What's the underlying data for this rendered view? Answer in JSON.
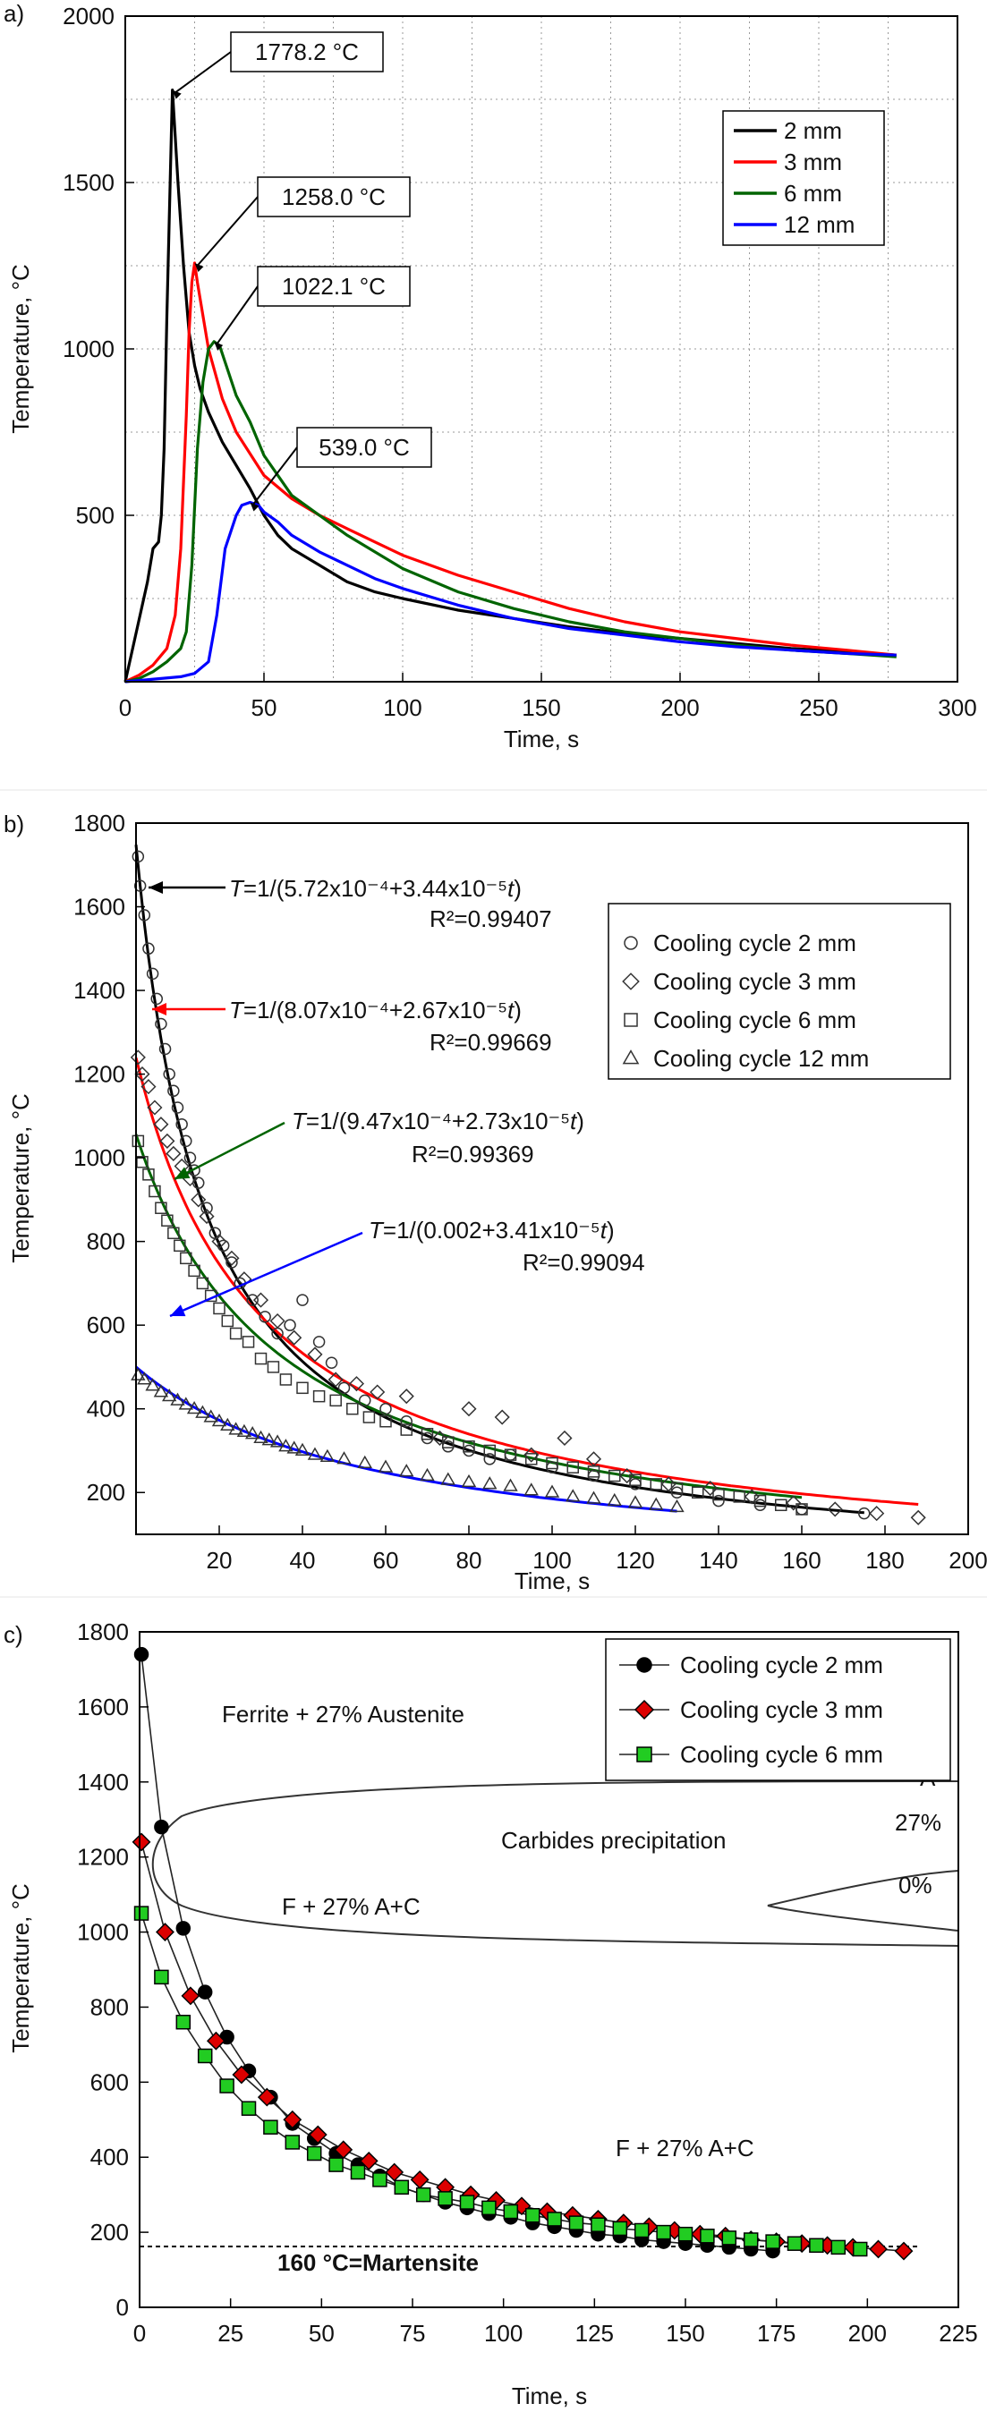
{
  "chart_data": [
    {
      "panel_label": "a)",
      "type": "line",
      "xlabel": "Time, s",
      "ylabel": "Temperature, °C",
      "xlim": [
        0,
        300
      ],
      "ylim": [
        0,
        2000
      ],
      "xticks": [
        0,
        50,
        100,
        150,
        200,
        250,
        300
      ],
      "yticks": [
        500,
        1000,
        1500,
        2000
      ],
      "legend_position": "top-right",
      "series": [
        {
          "name": "2 mm",
          "color": "#000000",
          "x": [
            0,
            4,
            8,
            10,
            12,
            13,
            14,
            15,
            17,
            19,
            21,
            23,
            25,
            27,
            30,
            35,
            40,
            45,
            50,
            55,
            60,
            70,
            80,
            90,
            100,
            120,
            140,
            160,
            180,
            200,
            220,
            240,
            260,
            278
          ],
          "y": [
            0,
            150,
            300,
            400,
            420,
            500,
            700,
            1100,
            1778,
            1500,
            1250,
            1050,
            950,
            880,
            810,
            720,
            650,
            580,
            500,
            440,
            400,
            350,
            300,
            270,
            250,
            215,
            190,
            165,
            145,
            130,
            115,
            100,
            90,
            80
          ]
        },
        {
          "name": "3 mm",
          "color": "#ff0000",
          "x": [
            0,
            5,
            10,
            15,
            18,
            20,
            22,
            23,
            24,
            25,
            26,
            30,
            35,
            40,
            50,
            60,
            70,
            80,
            90,
            100,
            120,
            140,
            160,
            180,
            200,
            220,
            240,
            260,
            278
          ],
          "y": [
            0,
            20,
            50,
            100,
            200,
            400,
            800,
            1050,
            1200,
            1258,
            1200,
            1000,
            850,
            750,
            620,
            550,
            500,
            460,
            420,
            380,
            320,
            270,
            220,
            180,
            150,
            130,
            110,
            95,
            80
          ]
        },
        {
          "name": "6 mm",
          "color": "#006400",
          "x": [
            0,
            5,
            10,
            15,
            20,
            22,
            24,
            26,
            28,
            30,
            32,
            34,
            36,
            40,
            45,
            50,
            60,
            70,
            80,
            90,
            100,
            120,
            140,
            160,
            180,
            200,
            220,
            240,
            260,
            278
          ],
          "y": [
            0,
            10,
            30,
            60,
            100,
            150,
            350,
            700,
            900,
            1000,
            1022,
            1010,
            960,
            860,
            780,
            680,
            560,
            500,
            440,
            390,
            340,
            270,
            220,
            180,
            150,
            130,
            110,
            95,
            85,
            75
          ]
        },
        {
          "name": "12 mm",
          "color": "#0000ff",
          "x": [
            0,
            20,
            25,
            30,
            33,
            36,
            40,
            42,
            45,
            48,
            50,
            55,
            60,
            70,
            80,
            90,
            100,
            120,
            140,
            160,
            180,
            200,
            220,
            240,
            260,
            278
          ],
          "y": [
            0,
            15,
            25,
            60,
            200,
            400,
            500,
            530,
            539,
            530,
            510,
            480,
            440,
            390,
            350,
            310,
            280,
            230,
            190,
            160,
            140,
            120,
            105,
            95,
            85,
            80
          ]
        }
      ],
      "annotations": [
        {
          "text": "1778.2 °C",
          "x": 17,
          "y": 1778
        },
        {
          "text": "1258.0 °C",
          "x": 25,
          "y": 1258
        },
        {
          "text": "1022.1 °C",
          "x": 32,
          "y": 1022
        },
        {
          "text": "539.0 °C",
          "x": 45,
          "y": 539
        }
      ]
    },
    {
      "panel_label": "b)",
      "type": "scatter",
      "xlabel": "Time, s",
      "ylabel": "Temperature, °C",
      "xlim": [
        0,
        200
      ],
      "ylim": [
        100,
        1800
      ],
      "xticks": [
        20,
        40,
        60,
        80,
        100,
        120,
        140,
        160,
        180,
        200
      ],
      "yticks": [
        200,
        400,
        600,
        800,
        1000,
        1200,
        1400,
        1600,
        1800
      ],
      "legend_position": "top-right",
      "series": [
        {
          "name": "Cooling cycle 2 mm",
          "marker": "circle",
          "x": [
            0.5,
            1,
            2,
            3,
            4,
            5,
            6,
            7,
            8,
            9,
            10,
            11,
            12,
            13,
            14,
            15,
            17,
            19,
            21,
            23,
            25,
            28,
            31,
            34,
            37,
            40,
            44,
            47,
            50,
            55,
            60,
            65,
            70,
            75,
            80,
            85,
            90,
            100,
            110,
            120,
            130,
            140,
            150,
            160,
            175
          ],
          "y": [
            1720,
            1650,
            1580,
            1500,
            1440,
            1380,
            1320,
            1260,
            1200,
            1160,
            1120,
            1080,
            1040,
            1000,
            970,
            940,
            880,
            820,
            790,
            750,
            700,
            660,
            620,
            580,
            600,
            660,
            560,
            510,
            450,
            420,
            400,
            370,
            330,
            310,
            300,
            280,
            290,
            260,
            240,
            220,
            200,
            180,
            170,
            160,
            150
          ]
        },
        {
          "name": "Cooling cycle 3 mm",
          "marker": "diamond",
          "x": [
            0.5,
            1.5,
            3,
            4.5,
            6,
            7.5,
            9,
            11,
            13,
            15,
            17,
            20,
            23,
            26,
            30,
            34,
            38,
            43,
            48,
            53,
            58,
            65,
            73,
            80,
            88,
            95,
            103,
            110,
            118,
            128,
            138,
            148,
            158,
            168,
            178,
            188
          ],
          "y": [
            1240,
            1200,
            1170,
            1120,
            1080,
            1040,
            1010,
            980,
            950,
            900,
            860,
            800,
            760,
            710,
            660,
            610,
            570,
            530,
            470,
            460,
            440,
            430,
            330,
            400,
            380,
            290,
            330,
            280,
            240,
            220,
            210,
            190,
            175,
            160,
            150,
            140
          ]
        },
        {
          "name": "Cooling cycle 6 mm",
          "marker": "square",
          "x": [
            0.5,
            1.5,
            3,
            4.5,
            6,
            7.5,
            9,
            10.5,
            12,
            14,
            16,
            18,
            20,
            22,
            24,
            27,
            30,
            33,
            36,
            40,
            44,
            48,
            52,
            56,
            60,
            65,
            70,
            75,
            80,
            85,
            90,
            95,
            100,
            105,
            110,
            115,
            120,
            125,
            130,
            135,
            140,
            145,
            150,
            155,
            160
          ],
          "y": [
            1040,
            990,
            960,
            920,
            880,
            850,
            820,
            790,
            760,
            730,
            700,
            670,
            640,
            610,
            580,
            560,
            520,
            500,
            470,
            450,
            430,
            420,
            400,
            380,
            370,
            350,
            340,
            320,
            310,
            300,
            290,
            280,
            270,
            260,
            250,
            240,
            230,
            220,
            210,
            200,
            195,
            190,
            180,
            170,
            160
          ]
        },
        {
          "name": "Cooling cycle 12 mm",
          "marker": "triangle",
          "x": [
            0.5,
            2,
            4,
            6,
            8,
            10,
            12,
            14,
            16,
            18,
            20,
            22,
            24,
            26,
            28,
            30,
            32,
            34,
            36,
            38,
            40,
            43,
            46,
            50,
            55,
            60,
            65,
            70,
            75,
            80,
            85,
            90,
            95,
            100,
            105,
            110,
            115,
            120,
            125,
            130
          ],
          "y": [
            480,
            470,
            455,
            440,
            430,
            420,
            410,
            400,
            390,
            380,
            370,
            360,
            350,
            345,
            340,
            330,
            325,
            320,
            310,
            305,
            300,
            290,
            285,
            280,
            270,
            260,
            250,
            240,
            230,
            225,
            220,
            215,
            205,
            200,
            190,
            185,
            180,
            175,
            170,
            165
          ]
        }
      ],
      "fits": [
        {
          "color": "#000000",
          "a": 0.000572,
          "b": 3.44e-05,
          "t_max": 175
        },
        {
          "color": "#ff0000",
          "a": 0.000807,
          "b": 2.67e-05,
          "t_max": 188
        },
        {
          "color": "#006400",
          "a": 0.000947,
          "b": 2.73e-05,
          "t_max": 160
        },
        {
          "color": "#0000ff",
          "a": 0.002,
          "b": 3.41e-05,
          "t_max": 130
        }
      ],
      "annotations": [
        {
          "equation_prefix": "T",
          "equation": "=1/(5.72x10⁻⁴+3.44x10⁻⁵",
          "equation_suffix": "t",
          "close": ")",
          "r2": "R²=0.99407",
          "arrow_color": "#000000"
        },
        {
          "equation_prefix": "T",
          "equation": "=1/(8.07x10⁻⁴+2.67x10⁻⁵",
          "equation_suffix": "t",
          "close": ")",
          "r2": "R²=0.99669",
          "arrow_color": "#ff0000"
        },
        {
          "equation_prefix": "T",
          "equation": "=1/(9.47x10⁻⁴+2.73x10⁻⁵",
          "equation_suffix": "t",
          "close": ")",
          "r2": "R²=0.99369",
          "arrow_color": "#006400"
        },
        {
          "equation_prefix": "T",
          "equation": "=1/(0.002+3.41x10⁻⁵",
          "equation_suffix": "t",
          "close": ")",
          "r2": "R²=0.99094",
          "arrow_color": "#0000ff"
        }
      ]
    },
    {
      "panel_label": "c)",
      "type": "scatter",
      "xlabel": "Time, s",
      "ylabel": "Temperature, °C",
      "xlim": [
        0,
        225
      ],
      "ylim": [
        0,
        1800
      ],
      "xticks": [
        0,
        25,
        50,
        75,
        100,
        125,
        150,
        175,
        200,
        225
      ],
      "yticks": [
        0,
        200,
        400,
        600,
        800,
        1000,
        1200,
        1400,
        1600,
        1800
      ],
      "legend_position": "top-right",
      "series": [
        {
          "name": "Cooling cycle 2 mm",
          "marker": "circle",
          "color": "#000000",
          "x": [
            0.5,
            6,
            12,
            18,
            24,
            30,
            36,
            42,
            48,
            54,
            60,
            66,
            72,
            78,
            84,
            90,
            96,
            102,
            108,
            114,
            120,
            126,
            132,
            138,
            144,
            150,
            156,
            162,
            168,
            174
          ],
          "y": [
            1740,
            1280,
            1010,
            840,
            720,
            630,
            560,
            490,
            450,
            410,
            380,
            350,
            320,
            300,
            280,
            265,
            250,
            240,
            225,
            215,
            205,
            195,
            190,
            180,
            175,
            170,
            165,
            160,
            155,
            150
          ]
        },
        {
          "name": "Cooling cycle 3 mm",
          "marker": "diamond",
          "color": "#dd0000",
          "x": [
            0.5,
            7,
            14,
            21,
            28,
            35,
            42,
            49,
            56,
            63,
            70,
            77,
            84,
            91,
            98,
            105,
            112,
            119,
            126,
            133,
            140,
            147,
            154,
            161,
            168,
            175,
            182,
            189,
            196,
            203,
            210
          ],
          "y": [
            1240,
            1000,
            830,
            710,
            620,
            560,
            500,
            460,
            420,
            390,
            360,
            340,
            320,
            300,
            285,
            270,
            255,
            245,
            235,
            225,
            215,
            205,
            195,
            190,
            180,
            175,
            170,
            165,
            160,
            155,
            150
          ]
        },
        {
          "name": "Cooling cycle 6 mm",
          "marker": "square",
          "color": "#22cc22",
          "x": [
            0.5,
            6,
            12,
            18,
            24,
            30,
            36,
            42,
            48,
            54,
            60,
            66,
            72,
            78,
            84,
            90,
            96,
            102,
            108,
            114,
            120,
            126,
            132,
            138,
            144,
            150,
            156,
            162,
            168,
            174,
            180,
            186,
            192,
            198
          ],
          "y": [
            1050,
            880,
            760,
            670,
            590,
            530,
            480,
            440,
            410,
            380,
            360,
            340,
            320,
            300,
            290,
            280,
            265,
            255,
            245,
            235,
            225,
            220,
            210,
            205,
            200,
            195,
            190,
            185,
            180,
            175,
            170,
            165,
            160,
            155
          ]
        }
      ],
      "reference_line": {
        "y": 160,
        "label": "160 °C=Martensite"
      },
      "region_labels": [
        "Ferrite + 27% Austenite",
        "Carbides precipitation",
        "F + 27% A+C",
        "F + 27% A+C",
        "A",
        "27%",
        "0%"
      ]
    }
  ]
}
